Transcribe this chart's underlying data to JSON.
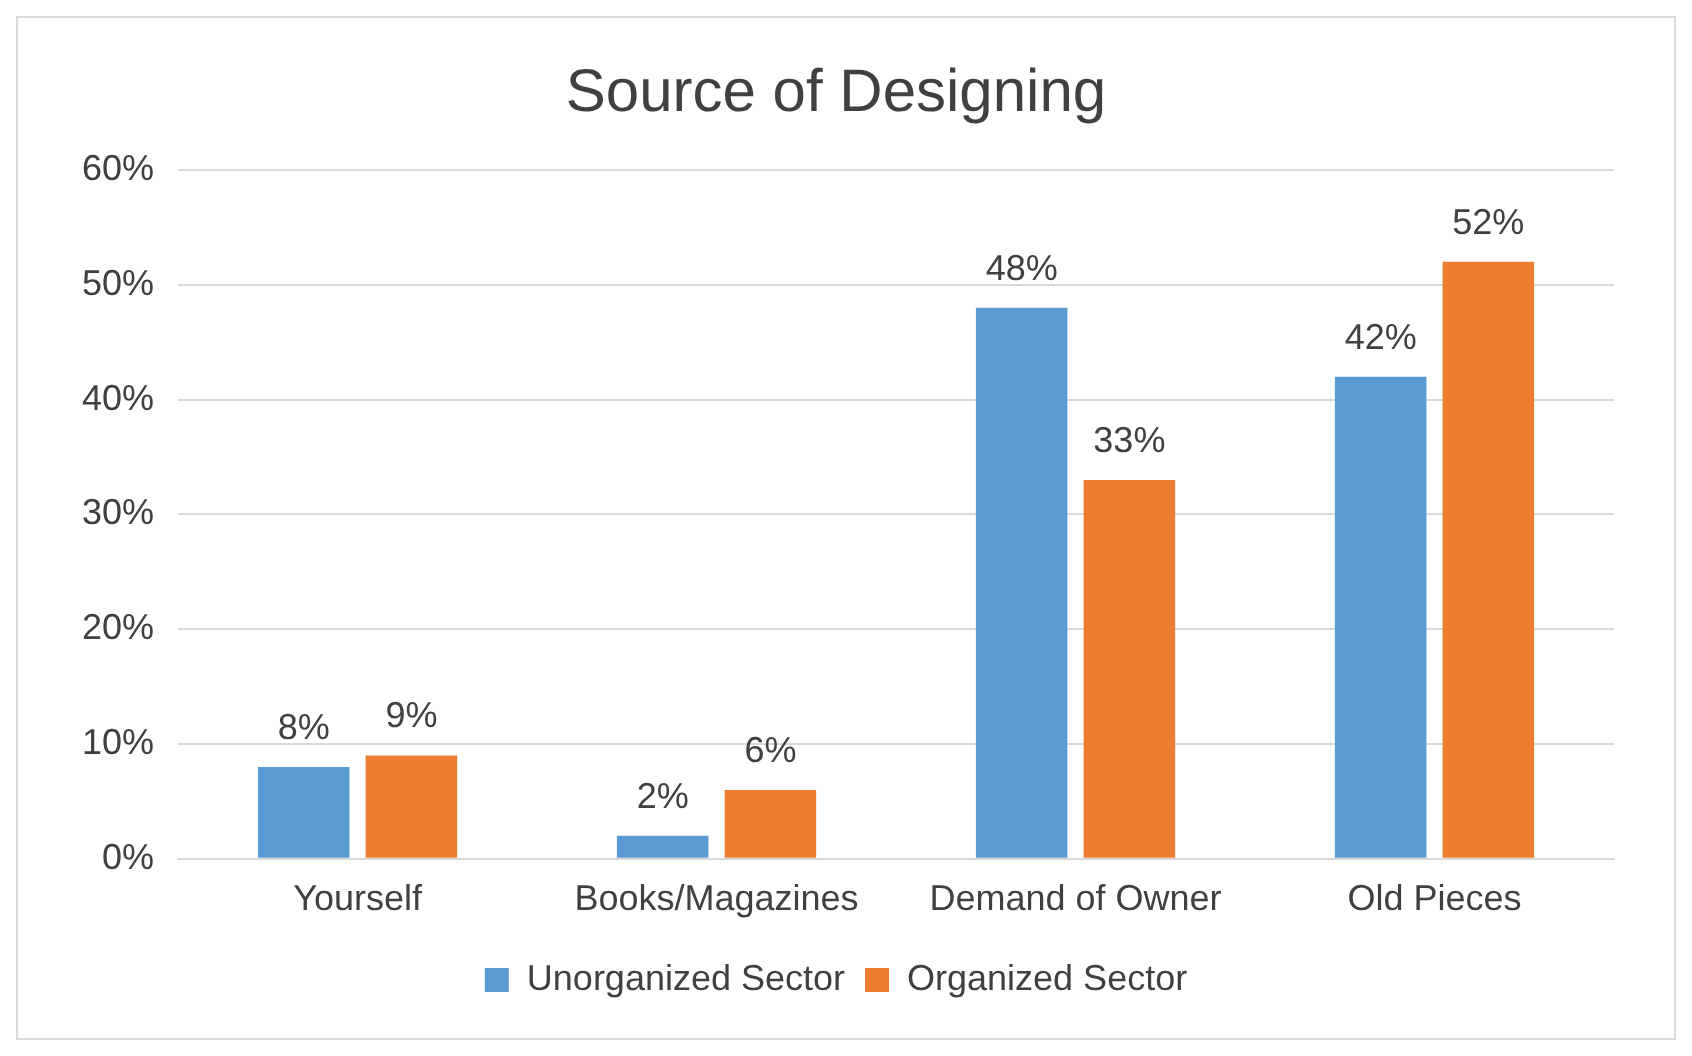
{
  "chart_data": {
    "type": "bar",
    "title": "Source of Designing",
    "categories": [
      "Yourself",
      "Books/Magazines",
      "Demand of Owner",
      "Old Pieces"
    ],
    "series": [
      {
        "name": "Unorganized Sector",
        "color": "#5b9bd5",
        "values": [
          8,
          2,
          48,
          42
        ],
        "value_labels": [
          "8%",
          "2%",
          "48%",
          "42%"
        ]
      },
      {
        "name": "Organized Sector",
        "color": "#ed7d31",
        "values": [
          9,
          6,
          33,
          52
        ],
        "value_labels": [
          "9%",
          "6%",
          "33%",
          "52%"
        ]
      }
    ],
    "ylim": [
      0,
      60
    ],
    "yticks": [
      {
        "value": 0,
        "label": "0%"
      },
      {
        "value": 10,
        "label": "10%"
      },
      {
        "value": 20,
        "label": "20%"
      },
      {
        "value": 30,
        "label": "30%"
      },
      {
        "value": 40,
        "label": "40%"
      },
      {
        "value": 50,
        "label": "50%"
      },
      {
        "value": 60,
        "label": "60%"
      }
    ],
    "grid": "y",
    "legend": "bottom"
  }
}
